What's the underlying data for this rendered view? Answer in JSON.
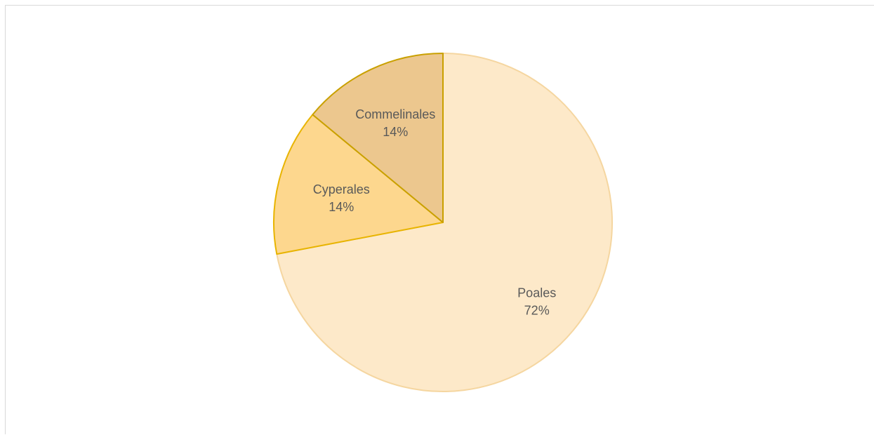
{
  "chart_data": {
    "type": "pie",
    "title": "",
    "slices": [
      {
        "label": "Poales",
        "percent_label": "72%",
        "value": 72,
        "color": "#fde9c9",
        "stroke": "#f5d6a0"
      },
      {
        "label": "Cyperales",
        "percent_label": "14%",
        "value": 14,
        "color": "#fdd78e",
        "stroke": "#e8b400"
      },
      {
        "label": "Commelinales",
        "percent_label": "14%",
        "value": 14,
        "color": "#ecc78e",
        "stroke": "#c9a000"
      }
    ],
    "start_angle_deg": 0,
    "direction": "clockwise",
    "legend": "none",
    "data_labels": "inside"
  }
}
